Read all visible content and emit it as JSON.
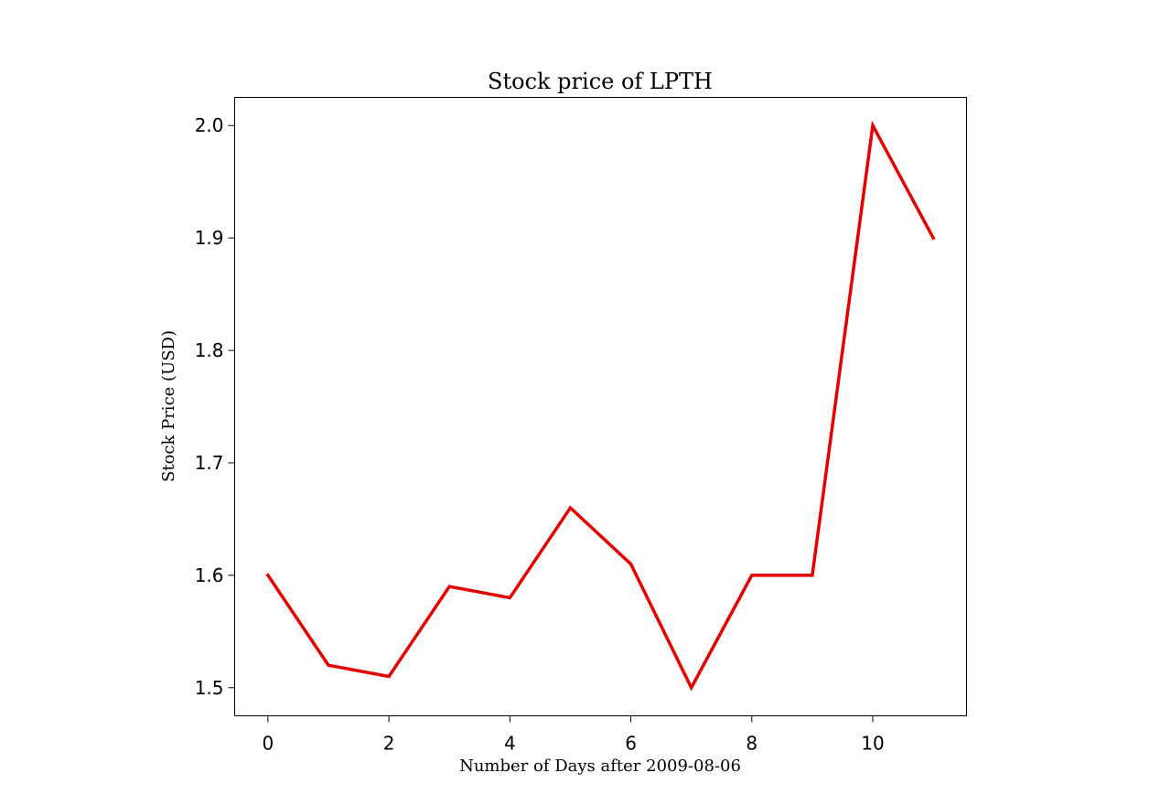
{
  "chart_data": {
    "type": "line",
    "title": "Stock price of LPTH",
    "xlabel": "Number of Days after 2009-08-06",
    "ylabel": "Stock Price (USD)",
    "x": [
      0,
      1,
      2,
      3,
      4,
      5,
      6,
      7,
      8,
      9,
      10,
      11
    ],
    "series": [
      {
        "values": [
          1.6,
          1.52,
          1.51,
          1.59,
          1.58,
          1.66,
          1.61,
          1.5,
          1.6,
          1.6,
          2.0,
          1.9
        ],
        "color": "#e60000"
      }
    ],
    "xlim": [
      -0.55,
      11.55
    ],
    "ylim": [
      1.475,
      2.025
    ],
    "xticks": [
      0,
      2,
      4,
      6,
      8,
      10
    ],
    "xtick_labels": [
      "0",
      "2",
      "4",
      "6",
      "8",
      "10"
    ],
    "yticks": [
      1.5,
      1.6,
      1.7,
      1.8,
      1.9,
      2.0
    ],
    "ytick_labels": [
      "1.5",
      "1.6",
      "1.7",
      "1.8",
      "1.9",
      "2.0"
    ],
    "grid": false,
    "legend": false
  }
}
